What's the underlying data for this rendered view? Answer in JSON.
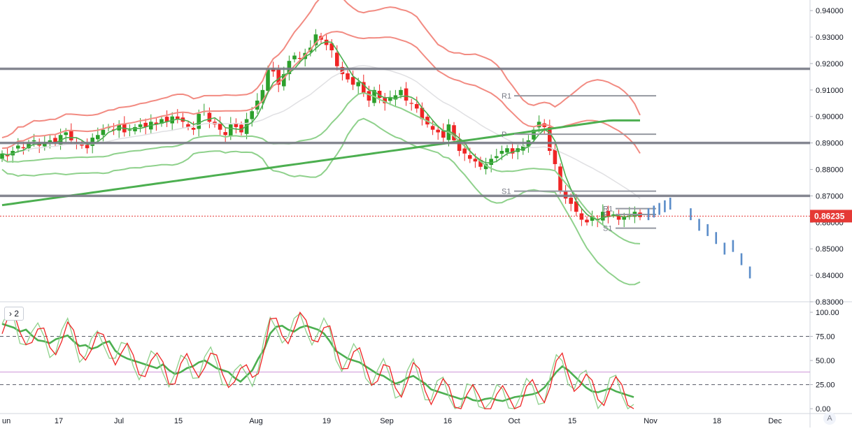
{
  "indicator_badge": {
    "chevron": "›",
    "count": "2"
  },
  "auto_scale_label": "A",
  "colors": {
    "bull": "#26a69a",
    "bull_green": "#2ca02c",
    "bear": "#ef2525",
    "bb_outer": "#f28b82",
    "bb_mid_red": "#f05454",
    "env_green": "#8fd18c",
    "ma_gray": "#e0e0e3",
    "ma_green": "#4caf50",
    "level": "#787b86",
    "forecast": "#5b8dc9",
    "price_line": "#e53935"
  },
  "chart_data": [
    {
      "type": "candlestick",
      "title": "",
      "ylim": [
        0.83,
        0.944
      ],
      "y_ticks": [
        "0.94000",
        "0.93000",
        "0.92000",
        "0.91000",
        "0.90000",
        "0.89000",
        "0.88000",
        "0.87000",
        "0.86000",
        "0.85000",
        "0.84000",
        "0.83000"
      ],
      "x_tick_labels": [
        "un",
        "17",
        "Jul",
        "15",
        "Aug",
        "19",
        "Sep",
        "16",
        "Oct",
        "15",
        "Nov",
        "18",
        "Dec"
      ],
      "last_price": "0.86235",
      "horizontal_levels": [
        0.918,
        0.89,
        0.87
      ],
      "pivot_levels": [
        {
          "label": "R1",
          "value": 0.9078
        },
        {
          "label": "P",
          "value": 0.8933
        },
        {
          "label": "S1",
          "value": 0.8718
        },
        {
          "label": "R1",
          "value": 0.8652
        },
        {
          "label": "P",
          "value": 0.863
        },
        {
          "label": "S1",
          "value": 0.8578
        }
      ],
      "candles_note": "daily OHLC approximated",
      "closes": [
        0.886,
        0.885,
        0.887,
        0.889,
        0.888,
        0.89,
        0.891,
        0.889,
        0.89,
        0.891,
        0.89,
        0.893,
        0.894,
        0.891,
        0.89,
        0.889,
        0.888,
        0.892,
        0.893,
        0.895,
        0.896,
        0.895,
        0.897,
        0.894,
        0.895,
        0.896,
        0.897,
        0.896,
        0.898,
        0.897,
        0.899,
        0.898,
        0.9,
        0.899,
        0.898,
        0.896,
        0.895,
        0.901,
        0.902,
        0.898,
        0.897,
        0.895,
        0.893,
        0.897,
        0.896,
        0.894,
        0.899,
        0.902,
        0.906,
        0.91,
        0.918,
        0.917,
        0.912,
        0.916,
        0.921,
        0.923,
        0.922,
        0.924,
        0.926,
        0.931,
        0.929,
        0.927,
        0.925,
        0.919,
        0.916,
        0.914,
        0.912,
        0.913,
        0.909,
        0.906,
        0.91,
        0.907,
        0.905,
        0.907,
        0.908,
        0.91,
        0.906,
        0.905,
        0.903,
        0.899,
        0.897,
        0.895,
        0.894,
        0.892,
        0.897,
        0.891,
        0.887,
        0.886,
        0.884,
        0.883,
        0.881,
        0.882,
        0.884,
        0.885,
        0.887,
        0.888,
        0.886,
        0.888,
        0.889,
        0.891,
        0.895,
        0.898,
        0.896,
        0.887,
        0.882,
        0.872,
        0.869,
        0.867,
        0.864,
        0.861,
        0.86,
        0.862,
        0.861,
        0.864,
        0.862,
        0.863,
        0.861,
        0.862,
        0.863,
        0.864,
        0.862
      ],
      "forecast_bars": [
        {
          "date": "Oct 29",
          "value": 0.864
        },
        {
          "date": "Oct 30",
          "value": 0.865
        },
        {
          "date": "Oct 31",
          "value": 0.866
        },
        {
          "date": "Nov 1",
          "value": 0.867
        },
        {
          "date": "Nov 2",
          "value": 0.868
        },
        {
          "date": "Nov 3",
          "value": 0.864
        },
        {
          "date": "Nov 4",
          "value": 0.86
        },
        {
          "date": "Nov 5",
          "value": 0.858
        },
        {
          "date": "Nov 8",
          "value": 0.855
        },
        {
          "date": "Nov 10",
          "value": 0.851
        },
        {
          "date": "Nov 12",
          "value": 0.852
        },
        {
          "date": "Nov 15",
          "value": 0.847
        },
        {
          "date": "Nov 17",
          "value": 0.842
        }
      ]
    },
    {
      "type": "line",
      "title": "",
      "ylim": [
        -5,
        108
      ],
      "y_ticks": [
        "100.00",
        "75.00",
        "50.00",
        "25.00",
        "0.00"
      ],
      "reference_lines": [
        75,
        38,
        25
      ],
      "series": [
        {
          "values": [
            88,
            86,
            84,
            80,
            82,
            76,
            71,
            70,
            68,
            72,
            74,
            76,
            70,
            65,
            66,
            62,
            64,
            68,
            70,
            60,
            55,
            52,
            50,
            48,
            46,
            44,
            42,
            46,
            40,
            36,
            38,
            42,
            44,
            48,
            50,
            46,
            42,
            40,
            38,
            32,
            28,
            34,
            40,
            52,
            62,
            78,
            85,
            86,
            82,
            80,
            84,
            86,
            84,
            82,
            78,
            70,
            60,
            56,
            52,
            50,
            48,
            44,
            40,
            36,
            34,
            30,
            26,
            28,
            32,
            34,
            30,
            26,
            20,
            18,
            16,
            14,
            12,
            10,
            12,
            9,
            8,
            10,
            11,
            9,
            8,
            10,
            12,
            13,
            14,
            15,
            17,
            22,
            30,
            38,
            44,
            40,
            34,
            28,
            22,
            18,
            17,
            19,
            21,
            18,
            16,
            14,
            12
          ]
        }
      ]
    }
  ]
}
